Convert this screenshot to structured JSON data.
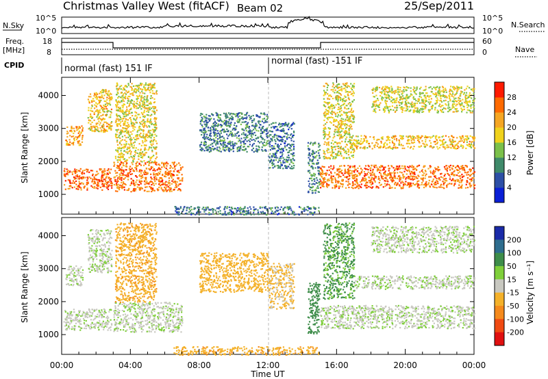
{
  "header": {
    "station": "Christmas Valley West (fitACF)",
    "beam": "Beam 02",
    "date": "25/Sep/2011"
  },
  "summary": {
    "nsky_label": "N.Sky",
    "nsky_ticks": [
      "10^5",
      "10^0"
    ],
    "nsearch_label": "N.Search",
    "nsearch_ticks": [
      "10^5",
      "10^0"
    ],
    "freq_label_line1": "Freq.",
    "freq_label_line2": "[MHz]",
    "freq_ticks": [
      "18",
      "8"
    ],
    "nave_label": "Nave",
    "nave_ticks": [
      "60",
      "0"
    ],
    "cpid_label": "CPID",
    "cpid_segments": [
      {
        "text": "normal (fast) 151 IF",
        "start_hour": 0
      },
      {
        "text": "normal (fast) -151 IF",
        "start_hour": 12
      }
    ]
  },
  "chart_data": [
    {
      "type": "heatmap",
      "panel": "power",
      "ylabel": "Slant Range [km]",
      "yticks": [
        "1000",
        "2000",
        "3000",
        "4000"
      ],
      "ylim": [
        400,
        4550
      ],
      "xlim": [
        0,
        24
      ],
      "colorbar_label": "Power [dB]",
      "colorbar_ticks": [
        "4",
        "8",
        "12",
        "16",
        "20",
        "24",
        "28"
      ],
      "colors": [
        "#0a1fd6",
        "#2d4fa6",
        "#3f8a6a",
        "#7bc04a",
        "#f0d21c",
        "#f5a623",
        "#ff6a00",
        "#ff1a00"
      ],
      "bands": [
        {
          "hours": [
            0.1,
            2.9
          ],
          "range_km": [
            1150,
            1800
          ],
          "value_db": 26
        },
        {
          "hours": [
            3.0,
            7.0
          ],
          "range_km": [
            1100,
            2000
          ],
          "value_db": 25
        },
        {
          "hours": [
            0.2,
            1.2
          ],
          "range_km": [
            2500,
            3100
          ],
          "value_db": 22
        },
        {
          "hours": [
            1.5,
            2.9
          ],
          "range_km": [
            2900,
            4200
          ],
          "value_db": 20
        },
        {
          "hours": [
            3.1,
            5.5
          ],
          "range_km": [
            2000,
            4400
          ],
          "value_db": 18
        },
        {
          "hours": [
            8.0,
            12.0
          ],
          "range_km": [
            2300,
            3500
          ],
          "value_db": 9
        },
        {
          "hours": [
            12.0,
            13.5
          ],
          "range_km": [
            1800,
            3200
          ],
          "value_db": 8
        },
        {
          "hours": [
            14.3,
            15.0
          ],
          "range_km": [
            1050,
            2600
          ],
          "value_db": 10
        },
        {
          "hours": [
            15.0,
            24.0
          ],
          "range_km": [
            1200,
            1900
          ],
          "value_db": 25
        },
        {
          "hours": [
            15.2,
            17.0
          ],
          "range_km": [
            2100,
            4400
          ],
          "value_db": 18
        },
        {
          "hours": [
            17.0,
            24.0
          ],
          "range_km": [
            2400,
            2800
          ],
          "value_db": 20
        },
        {
          "hours": [
            18.0,
            24.0
          ],
          "range_km": [
            3500,
            4300
          ],
          "value_db": 17
        },
        {
          "hours": [
            6.5,
            15.0
          ],
          "range_km": [
            400,
            650
          ],
          "value_db": 8
        }
      ]
    },
    {
      "type": "heatmap",
      "panel": "velocity",
      "ylabel": "Slant Range [km]",
      "yticks": [
        "1000",
        "2000",
        "3000",
        "4000"
      ],
      "ylim": [
        400,
        4550
      ],
      "xlim": [
        0,
        24
      ],
      "xlabel": "Time UT",
      "xticks": [
        "00:00",
        "04:00",
        "08:00",
        "12:00",
        "16:00",
        "20:00",
        "00:00"
      ],
      "colorbar_label": "Velocity [m s⁻¹]",
      "colorbar_ticks": [
        "200",
        "100",
        "50",
        "15",
        "-15",
        "-50",
        "-100",
        "-200"
      ],
      "colors": [
        "#1a2aa8",
        "#2e6d8e",
        "#3e8d4a",
        "#7fcf3a",
        "#c8c8c0",
        "#f4b12a",
        "#f58a1c",
        "#f04a12",
        "#e01010"
      ],
      "bands": [
        {
          "hours": [
            0.1,
            2.9
          ],
          "range_km": [
            1150,
            1800
          ],
          "value_ms": 0
        },
        {
          "hours": [
            3.0,
            7.0
          ],
          "range_km": [
            1100,
            2000
          ],
          "value_ms": 0
        },
        {
          "hours": [
            0.2,
            1.2
          ],
          "range_km": [
            2500,
            3100
          ],
          "value_ms": 0
        },
        {
          "hours": [
            1.5,
            2.9
          ],
          "range_km": [
            2900,
            4200
          ],
          "value_ms": 0
        },
        {
          "hours": [
            3.1,
            5.5
          ],
          "range_km": [
            2000,
            4400
          ],
          "value_ms": -40
        },
        {
          "hours": [
            8.0,
            12.0
          ],
          "range_km": [
            2300,
            3500
          ],
          "value_ms": -30
        },
        {
          "hours": [
            12.0,
            13.5
          ],
          "range_km": [
            1800,
            3200
          ],
          "value_ms": -20
        },
        {
          "hours": [
            14.3,
            15.0
          ],
          "range_km": [
            1050,
            2600
          ],
          "value_ms": 30
        },
        {
          "hours": [
            15.0,
            24.0
          ],
          "range_km": [
            1200,
            1900
          ],
          "value_ms": 0
        },
        {
          "hours": [
            15.2,
            17.0
          ],
          "range_km": [
            2100,
            4400
          ],
          "value_ms": 20
        },
        {
          "hours": [
            17.0,
            24.0
          ],
          "range_km": [
            2400,
            2800
          ],
          "value_ms": 0
        },
        {
          "hours": [
            18.0,
            24.0
          ],
          "range_km": [
            3500,
            4300
          ],
          "value_ms": 0
        },
        {
          "hours": [
            6.5,
            15.0
          ],
          "range_km": [
            400,
            650
          ],
          "value_ms": -40
        }
      ]
    }
  ]
}
